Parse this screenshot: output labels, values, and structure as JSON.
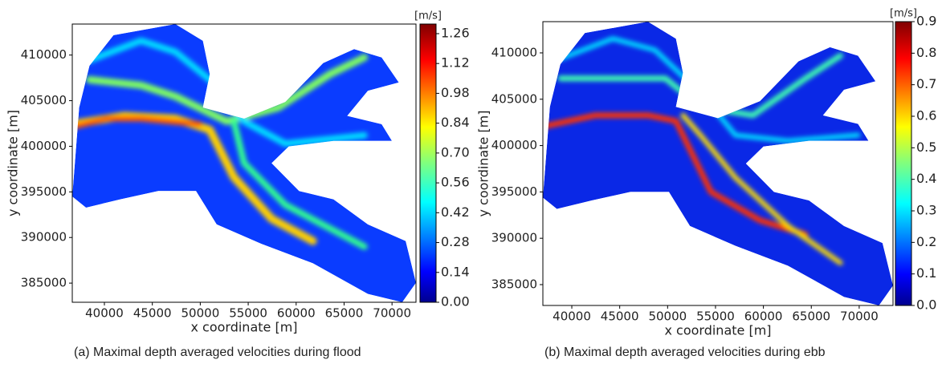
{
  "chart_data": [
    {
      "type": "heatmap",
      "caption": "(a) Maximal depth averaged velocities during flood",
      "x_label": "x coordinate [m]",
      "y_label": "y coordinate [m]",
      "colorbar_label": "[m/s]",
      "colormap": "jet",
      "xlim": [
        36650,
        72500
      ],
      "ylim": [
        382900,
        413400
      ],
      "xticks": [
        40000,
        45000,
        50000,
        55000,
        60000,
        65000,
        70000
      ],
      "yticks": [
        385000,
        390000,
        395000,
        400000,
        405000,
        410000
      ],
      "clim": [
        0,
        1.305
      ],
      "cticks": [
        {
          "value": 0,
          "label": "0.00"
        },
        0.14,
        0.28,
        0.42,
        0.56,
        {
          "value": 0.7,
          "label": "0.70"
        },
        0.84,
        0.98,
        1.12,
        1.26
      ]
    },
    {
      "type": "heatmap",
      "caption": "(b) Maximal depth averaged velocities during ebb",
      "x_label": "x coordinate [m]",
      "y_label": "y coordinate [m]",
      "colorbar_label": "[m/s]",
      "colormap": "jet",
      "xlim": [
        36980,
        73530
      ],
      "ylim": [
        382750,
        413370
      ],
      "xticks": [
        40000,
        45000,
        50000,
        55000,
        60000,
        65000,
        70000
      ],
      "yticks": [
        385000,
        390000,
        395000,
        400000,
        405000,
        410000
      ],
      "clim": [
        0,
        0.9
      ],
      "cticks": [
        {
          "value": 0,
          "label": "0.0"
        },
        0.1,
        0.2,
        0.3,
        0.4,
        0.5,
        0.6,
        0.7,
        0.8,
        0.9
      ]
    }
  ]
}
